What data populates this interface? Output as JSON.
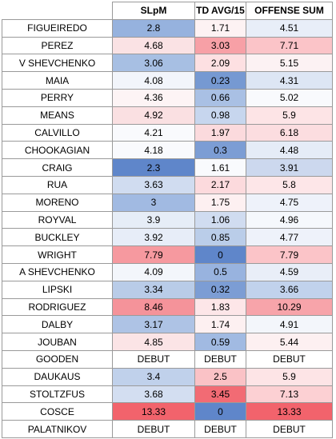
{
  "sheet": {
    "headers": [
      "",
      "SLpM",
      "TD AVG/15",
      "OFFENSE SUM"
    ],
    "rows": [
      {
        "name": "FIGUEIREDO",
        "cells": [
          {
            "text": "2.8",
            "color": "#96b2de"
          },
          {
            "text": "1.71",
            "color": "#fdf2f3"
          },
          {
            "text": "4.51",
            "color": "#e8eef8"
          }
        ]
      },
      {
        "name": "PEREZ",
        "cells": [
          {
            "text": "4.68",
            "color": "#fae2e4"
          },
          {
            "text": "3.03",
            "color": "#f7a0a6"
          },
          {
            "text": "7.71",
            "color": "#fbc4c8"
          }
        ]
      },
      {
        "name": "V SHEVCHENKO",
        "cells": [
          {
            "text": "3.06",
            "color": "#a7bfe3"
          },
          {
            "text": "2.09",
            "color": "#fde0e2"
          },
          {
            "text": "5.15",
            "color": "#fcf2f3"
          }
        ]
      },
      {
        "name": "MAIA",
        "cells": [
          {
            "text": "4.08",
            "color": "#f2f5fb"
          },
          {
            "text": "0.23",
            "color": "#7699d2"
          },
          {
            "text": "4.31",
            "color": "#dde6f4"
          }
        ]
      },
      {
        "name": "PERRY",
        "cells": [
          {
            "text": "4.36",
            "color": "#fdf4f5"
          },
          {
            "text": "0.66",
            "color": "#a9c0e4"
          },
          {
            "text": "5.02",
            "color": "#f9fafd"
          }
        ]
      },
      {
        "name": "MEANS",
        "cells": [
          {
            "text": "4.92",
            "color": "#fae0e2"
          },
          {
            "text": "0.98",
            "color": "#c7d6ee"
          },
          {
            "text": "5.9",
            "color": "#fde4e6"
          }
        ]
      },
      {
        "name": "CALVILLO",
        "cells": [
          {
            "text": "4.21",
            "color": "#f9fafd"
          },
          {
            "text": "1.97",
            "color": "#fbdadd"
          },
          {
            "text": "6.18",
            "color": "#fcdde0"
          }
        ]
      },
      {
        "name": "CHOOKAGIAN",
        "cells": [
          {
            "text": "4.18",
            "color": "#f9fafd"
          },
          {
            "text": "0.3",
            "color": "#7c9dd4"
          },
          {
            "text": "4.48",
            "color": "#e5ecf7"
          }
        ]
      },
      {
        "name": "CRAIG",
        "cells": [
          {
            "text": "2.3",
            "color": "#5f86ca"
          },
          {
            "text": "1.61",
            "color": "#f9fafd"
          },
          {
            "text": "3.91",
            "color": "#ccd8ee"
          }
        ]
      },
      {
        "name": "RUA",
        "cells": [
          {
            "text": "3.63",
            "color": "#d0dcf0"
          },
          {
            "text": "2.17",
            "color": "#fcdadd"
          },
          {
            "text": "5.8",
            "color": "#fde6e8"
          }
        ]
      },
      {
        "name": "MORENO",
        "cells": [
          {
            "text": "3",
            "color": "#a1bae2"
          },
          {
            "text": "1.75",
            "color": "#fdf0f1"
          },
          {
            "text": "4.75",
            "color": "#eef2fa"
          }
        ]
      },
      {
        "name": "ROYVAL",
        "cells": [
          {
            "text": "3.9",
            "color": "#e6edf7"
          },
          {
            "text": "1.06",
            "color": "#d0dcf0"
          },
          {
            "text": "4.96",
            "color": "#f5f8fc"
          }
        ]
      },
      {
        "name": "BUCKLEY",
        "cells": [
          {
            "text": "3.92",
            "color": "#e7edf8"
          },
          {
            "text": "0.85",
            "color": "#bacde9"
          },
          {
            "text": "4.77",
            "color": "#eef2fa"
          }
        ]
      },
      {
        "name": "WRIGHT",
        "cells": [
          {
            "text": "7.79",
            "color": "#f6999f"
          },
          {
            "text": "0",
            "color": "#5f86ca"
          },
          {
            "text": "7.79",
            "color": "#fbc4c8"
          }
        ]
      },
      {
        "name": "A SHEVCHENKO",
        "cells": [
          {
            "text": "4.09",
            "color": "#f3f6fb"
          },
          {
            "text": "0.5",
            "color": "#98b3df"
          },
          {
            "text": "4.59",
            "color": "#e9eef8"
          }
        ]
      },
      {
        "name": "LIPSKI",
        "cells": [
          {
            "text": "3.34",
            "color": "#b9cce8"
          },
          {
            "text": "0.32",
            "color": "#7c9dd4"
          },
          {
            "text": "3.66",
            "color": "#c1d2ec"
          }
        ]
      },
      {
        "name": "RODRIGUEZ",
        "cells": [
          {
            "text": "8.46",
            "color": "#f5939a"
          },
          {
            "text": "1.83",
            "color": "#fde6e8"
          },
          {
            "text": "10.29",
            "color": "#f7a4aa"
          }
        ]
      },
      {
        "name": "DALBY",
        "cells": [
          {
            "text": "3.17",
            "color": "#aec3e5"
          },
          {
            "text": "1.74",
            "color": "#fdf0f1"
          },
          {
            "text": "4.91",
            "color": "#f3f6fb"
          }
        ]
      },
      {
        "name": "JOUBAN",
        "cells": [
          {
            "text": "4.85",
            "color": "#fbe4e6"
          },
          {
            "text": "0.59",
            "color": "#a1bae2"
          },
          {
            "text": "5.44",
            "color": "#fdf0f1"
          }
        ]
      },
      {
        "name": "GOODEN",
        "cells": [
          {
            "text": "DEBUT",
            "color": "#ffffff"
          },
          {
            "text": "DEBUT",
            "color": "#ffffff"
          },
          {
            "text": "DEBUT",
            "color": "#ffffff"
          }
        ]
      },
      {
        "name": "DAUKAUS",
        "cells": [
          {
            "text": "3.4",
            "color": "#c0d1eb"
          },
          {
            "text": "2.5",
            "color": "#fac2c6"
          },
          {
            "text": "5.9",
            "color": "#fde4e6"
          }
        ]
      },
      {
        "name": "STOLTZFUS",
        "cells": [
          {
            "text": "3.68",
            "color": "#d3def1"
          },
          {
            "text": "3.45",
            "color": "#f26b74"
          },
          {
            "text": "7.13",
            "color": "#fcd0d3"
          }
        ]
      },
      {
        "name": "COSCE",
        "cells": [
          {
            "text": "13.33",
            "color": "#f2636c"
          },
          {
            "text": "0",
            "color": "#5f86ca"
          },
          {
            "text": "13.33",
            "color": "#f2636c"
          }
        ]
      },
      {
        "name": "PALATNIKOV",
        "cells": [
          {
            "text": "DEBUT",
            "color": "#ffffff"
          },
          {
            "text": "DEBUT",
            "color": "#ffffff"
          },
          {
            "text": "DEBUT",
            "color": "#ffffff"
          }
        ]
      }
    ]
  }
}
